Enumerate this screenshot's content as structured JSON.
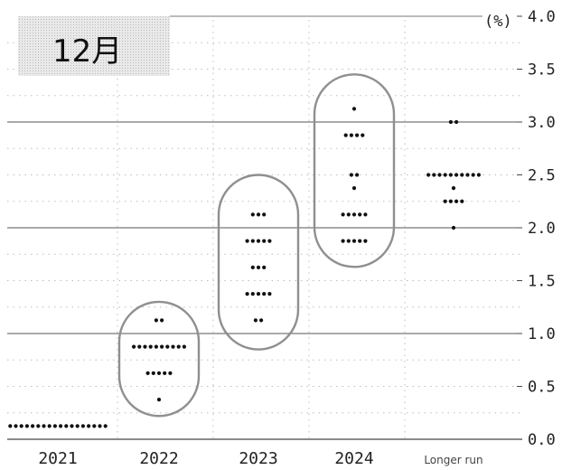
{
  "chart_data": {
    "type": "scatter",
    "title": "12月",
    "unit_label": "(%)",
    "ylim": [
      0,
      4.0
    ],
    "yticks": [
      "0.0",
      "0.5",
      "1.0",
      "1.5",
      "2.0",
      "2.5",
      "3.0",
      "3.5",
      "4.0"
    ],
    "categories": [
      "2021",
      "2022",
      "2023",
      "2024",
      "Longer run"
    ],
    "grid": true,
    "major_gridlines": [
      1.0,
      2.0,
      3.0
    ],
    "dots": {
      "2021": [
        {
          "y": 0.125,
          "count": 18
        }
      ],
      "2022": [
        {
          "y": 0.375,
          "count": 1
        },
        {
          "y": 0.625,
          "count": 5
        },
        {
          "y": 0.875,
          "count": 10
        },
        {
          "y": 1.125,
          "count": 2
        }
      ],
      "2023": [
        {
          "y": 1.125,
          "count": 2
        },
        {
          "y": 1.375,
          "count": 5
        },
        {
          "y": 1.625,
          "count": 3
        },
        {
          "y": 1.875,
          "count": 5
        },
        {
          "y": 2.125,
          "count": 3
        }
      ],
      "2024": [
        {
          "y": 1.875,
          "count": 5
        },
        {
          "y": 2.125,
          "count": 5
        },
        {
          "y": 2.375,
          "count": 1
        },
        {
          "y": 2.5,
          "count": 2
        },
        {
          "y": 2.875,
          "count": 4
        },
        {
          "y": 3.125,
          "count": 1
        }
      ],
      "Longer run": [
        {
          "y": 2.0,
          "count": 1
        },
        {
          "y": 2.25,
          "count": 4
        },
        {
          "y": 2.375,
          "count": 1
        },
        {
          "y": 2.5,
          "count": 10
        },
        {
          "y": 3.0,
          "count": 2
        }
      ]
    },
    "highlight_ovals": [
      {
        "category": "2022",
        "ymin": 0.22,
        "ymax": 1.3
      },
      {
        "category": "2023",
        "ymin": 0.85,
        "ymax": 2.5
      },
      {
        "category": "2024",
        "ymin": 1.63,
        "ymax": 3.45
      }
    ],
    "colors": {
      "dot": "#111111",
      "oval": "#8f8f8f",
      "gridline": "#bdbdbd",
      "major_gridline": "#555555"
    }
  }
}
